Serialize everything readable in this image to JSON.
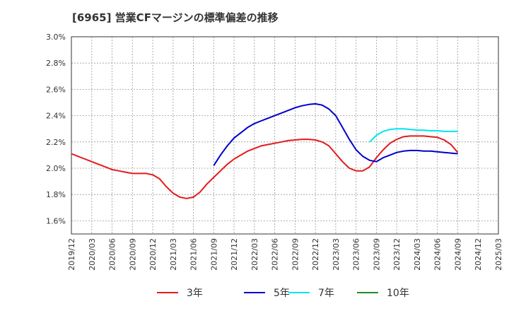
{
  "chart_data": {
    "type": "line",
    "title": "[6965]  営業CFマージンの標準偏差の推移",
    "xlabel": "",
    "ylabel": "",
    "ylim": [
      1.5,
      3.0
    ],
    "y_ticks": [
      "1.6%",
      "1.8%",
      "2.0%",
      "2.2%",
      "2.4%",
      "2.6%",
      "2.8%",
      "3.0%"
    ],
    "x_ticks": [
      "2019/12",
      "2020/03",
      "2020/06",
      "2020/09",
      "2020/12",
      "2021/03",
      "2021/06",
      "2021/09",
      "2021/12",
      "2022/03",
      "2022/06",
      "2022/09",
      "2022/12",
      "2023/03",
      "2023/06",
      "2023/09",
      "2023/12",
      "2024/03",
      "2024/06",
      "2024/09",
      "2024/12",
      "2025/03"
    ],
    "grid": true,
    "legend_position": "bottom",
    "series": [
      {
        "name": "3年",
        "color": "#e41a1c",
        "x": [
          "2019/12",
          "2020/01",
          "2020/02",
          "2020/03",
          "2020/04",
          "2020/05",
          "2020/06",
          "2020/07",
          "2020/08",
          "2020/09",
          "2020/10",
          "2020/11",
          "2020/12",
          "2021/01",
          "2021/02",
          "2021/03",
          "2021/04",
          "2021/05",
          "2021/06",
          "2021/07",
          "2021/08",
          "2021/09",
          "2021/10",
          "2021/11",
          "2021/12",
          "2022/01",
          "2022/02",
          "2022/03",
          "2022/04",
          "2022/05",
          "2022/06",
          "2022/07",
          "2022/08",
          "2022/09",
          "2022/10",
          "2022/11",
          "2022/12",
          "2023/01",
          "2023/02",
          "2023/03",
          "2023/04",
          "2023/05",
          "2023/06",
          "2023/07",
          "2023/08",
          "2023/09",
          "2023/10",
          "2023/11",
          "2023/12",
          "2024/01",
          "2024/02",
          "2024/03",
          "2024/04",
          "2024/05",
          "2024/06",
          "2024/07",
          "2024/08",
          "2024/09"
        ],
        "values": [
          2.11,
          2.09,
          2.07,
          2.05,
          2.03,
          2.01,
          1.99,
          1.98,
          1.97,
          1.96,
          1.96,
          1.96,
          1.95,
          1.92,
          1.86,
          1.81,
          1.78,
          1.77,
          1.78,
          1.82,
          1.88,
          1.93,
          1.98,
          2.03,
          2.07,
          2.1,
          2.13,
          2.15,
          2.17,
          2.18,
          2.19,
          2.2,
          2.21,
          2.215,
          2.22,
          2.22,
          2.215,
          2.2,
          2.17,
          2.11,
          2.05,
          2.0,
          1.98,
          1.98,
          2.01,
          2.08,
          2.14,
          2.19,
          2.22,
          2.24,
          2.245,
          2.245,
          2.245,
          2.24,
          2.235,
          2.215,
          2.18,
          2.12
        ]
      },
      {
        "name": "5年",
        "color": "#0000cc",
        "x": [
          "2021/09",
          "2021/10",
          "2021/11",
          "2021/12",
          "2022/01",
          "2022/02",
          "2022/03",
          "2022/04",
          "2022/05",
          "2022/06",
          "2022/07",
          "2022/08",
          "2022/09",
          "2022/10",
          "2022/11",
          "2022/12",
          "2023/01",
          "2023/02",
          "2023/03",
          "2023/04",
          "2023/05",
          "2023/06",
          "2023/07",
          "2023/08",
          "2023/09",
          "2023/10",
          "2023/11",
          "2023/12",
          "2024/01",
          "2024/02",
          "2024/03",
          "2024/04",
          "2024/05",
          "2024/06",
          "2024/07",
          "2024/08",
          "2024/09"
        ],
        "values": [
          2.02,
          2.1,
          2.17,
          2.23,
          2.27,
          2.31,
          2.34,
          2.36,
          2.38,
          2.4,
          2.42,
          2.44,
          2.46,
          2.475,
          2.485,
          2.49,
          2.48,
          2.45,
          2.4,
          2.31,
          2.22,
          2.14,
          2.09,
          2.06,
          2.05,
          2.08,
          2.1,
          2.12,
          2.13,
          2.135,
          2.135,
          2.13,
          2.13,
          2.125,
          2.12,
          2.115,
          2.11
        ]
      },
      {
        "name": "7年",
        "color": "#00e5ee",
        "x": [
          "2023/08",
          "2023/09",
          "2023/10",
          "2023/11",
          "2023/12",
          "2024/01",
          "2024/02",
          "2024/03",
          "2024/04",
          "2024/05",
          "2024/06",
          "2024/07",
          "2024/08",
          "2024/09"
        ],
        "values": [
          2.2,
          2.25,
          2.28,
          2.295,
          2.3,
          2.3,
          2.295,
          2.29,
          2.29,
          2.285,
          2.285,
          2.28,
          2.28,
          2.28
        ]
      },
      {
        "name": "10年",
        "color": "#228b22",
        "x": [],
        "values": []
      }
    ]
  }
}
